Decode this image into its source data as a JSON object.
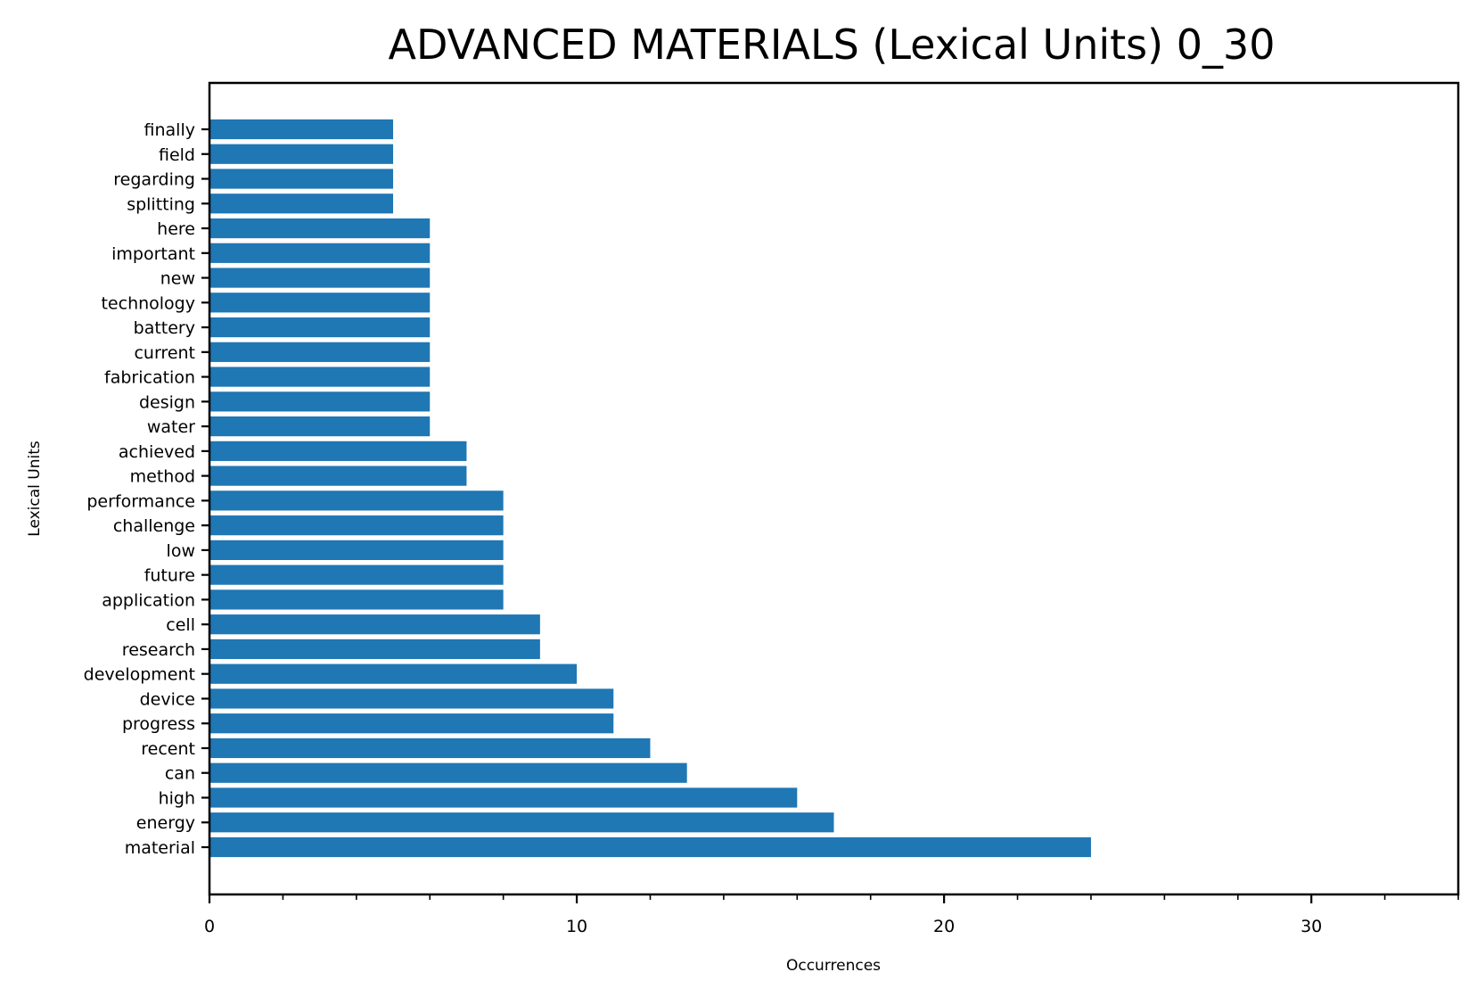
{
  "chart_data": {
    "type": "bar",
    "orientation": "horizontal",
    "title": "ADVANCED MATERIALS (Lexical Units) 0_30",
    "xlabel": "Occurrences",
    "ylabel": "Lexical Units",
    "categories": [
      "material",
      "energy",
      "high",
      "can",
      "recent",
      "progress",
      "device",
      "development",
      "research",
      "cell",
      "application",
      "future",
      "low",
      "challenge",
      "performance",
      "method",
      "achieved",
      "water",
      "design",
      "fabrication",
      "current",
      "battery",
      "technology",
      "new",
      "important",
      "here",
      "splitting",
      "regarding",
      "field",
      "finally"
    ],
    "values": [
      24,
      17,
      16,
      13,
      12,
      11,
      11,
      10,
      9,
      9,
      8,
      8,
      8,
      8,
      8,
      7,
      7,
      6,
      6,
      6,
      6,
      6,
      6,
      6,
      6,
      6,
      5,
      5,
      5,
      5
    ],
    "xlim": [
      0,
      34
    ],
    "xticks": [
      0,
      10,
      20,
      30
    ],
    "xtick_labels": [
      "0",
      "10",
      "20",
      "30"
    ],
    "bar_color": "#1f77b4",
    "grid": false,
    "legend": "none"
  }
}
